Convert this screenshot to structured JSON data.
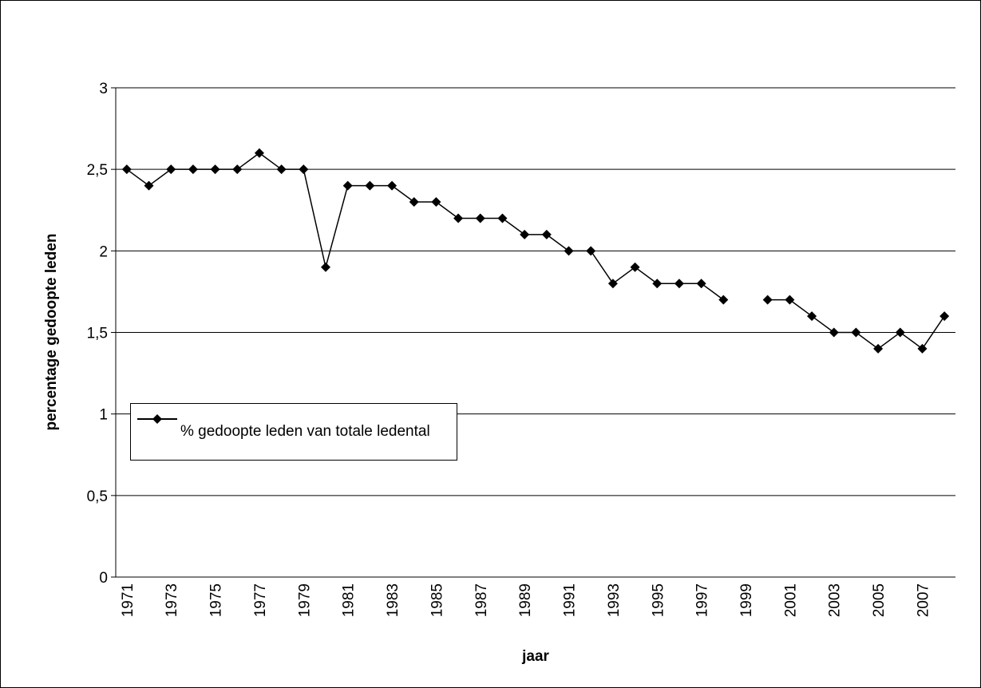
{
  "chart_data": {
    "type": "line",
    "x_label": "jaar",
    "y_label": "percentage gedoopte leden",
    "categories": [
      "1971",
      null,
      "1973",
      null,
      "1975",
      null,
      "1977",
      null,
      "1979",
      null,
      "1981",
      null,
      "1983",
      null,
      "1985",
      null,
      "1987",
      null,
      "1989",
      null,
      "1991",
      null,
      "1993",
      null,
      "1995",
      null,
      "1997",
      null,
      "1999",
      null,
      "2001",
      null,
      "2003",
      null,
      "2005",
      null,
      "2007",
      null
    ],
    "series": [
      {
        "name": "% gedoopte leden van totale ledental",
        "color": "#000000",
        "values": [
          2.5,
          2.4,
          2.5,
          2.5,
          2.5,
          2.5,
          2.6,
          2.5,
          2.5,
          1.9,
          2.4,
          2.4,
          2.4,
          2.3,
          2.3,
          2.2,
          2.2,
          2.2,
          2.1,
          2.1,
          2.0,
          2.0,
          1.8,
          1.9,
          1.8,
          1.8,
          1.8,
          1.7,
          null,
          1.7,
          1.7,
          1.6,
          1.5,
          1.5,
          1.4,
          1.5,
          1.4,
          1.6
        ]
      }
    ],
    "ylim": [
      0,
      3
    ],
    "yticks": [
      0,
      {
        "value": 0.5,
        "label": "0,5"
      },
      1,
      {
        "value": 1.5,
        "label": "1,5"
      },
      2,
      {
        "value": 2.5,
        "label": "2,5"
      },
      3
    ],
    "grid": true,
    "legend": "left"
  }
}
